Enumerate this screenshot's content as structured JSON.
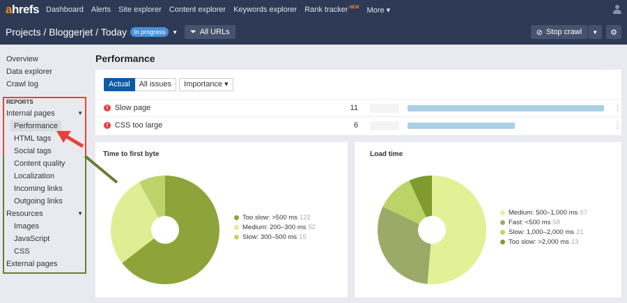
{
  "nav": {
    "logo_a": "a",
    "logo_rest": "hrefs",
    "items": [
      "Dashboard",
      "Alerts",
      "Site explorer",
      "Content explorer",
      "Keywords explorer",
      "Rank tracker",
      "More ▾"
    ],
    "new_badge": "NEW"
  },
  "header": {
    "crumbs": "Projects / Bloggerjet / Today",
    "status": "In progress",
    "filter": "All URLs",
    "stop": "Stop crawl"
  },
  "sidebar": {
    "top": [
      "Overview",
      "Data explorer",
      "Crawl log"
    ],
    "reports": "REPORTS",
    "internal": "Internal pages",
    "internal_items": [
      "Performance",
      "HTML tags",
      "Social tags",
      "Content quality",
      "Localization",
      "Incoming links",
      "Outgoing links"
    ],
    "resources": "Resources",
    "resource_items": [
      "Images",
      "JavaScript",
      "CSS"
    ],
    "external": "External pages",
    "selected": "Performance"
  },
  "main": {
    "title": "Performance",
    "tabs": [
      "Actual",
      "All issues"
    ],
    "importance": "Importance ▾",
    "issues": [
      {
        "name": "Slow page",
        "count": "11",
        "fill": 1.0
      },
      {
        "name": "CSS too large",
        "count": "6",
        "fill": 0.545
      }
    ]
  },
  "chart_data": [
    {
      "type": "pie",
      "title": "Time to first byte",
      "slices": [
        {
          "label": "Too slow: >500 ms",
          "value": 122,
          "color": "#8ea43a"
        },
        {
          "label": "Medium: 200–300 ms",
          "value": 52,
          "color": "#dfee95"
        },
        {
          "label": "Slow: 300–500 ms",
          "value": 15,
          "color": "#bfd36a"
        }
      ]
    },
    {
      "type": "pie",
      "title": "Load time",
      "slices": [
        {
          "label": "Medium: 500–1,000 ms",
          "value": 97,
          "color": "#e2f096"
        },
        {
          "label": "Fast: <500 ms",
          "value": 58,
          "color": "#9caa68"
        },
        {
          "label": "Slow: 1,000–2,000 ms",
          "value": 21,
          "color": "#bcd467"
        },
        {
          "label": "Too slow: >2,000 ms",
          "value": 13,
          "color": "#7f9a2e"
        }
      ]
    }
  ],
  "colors": {
    "nav_bg": "#2e3a55",
    "accent": "#0f5aa8",
    "error": "#e8413d",
    "bar": "#a9d0e4"
  }
}
